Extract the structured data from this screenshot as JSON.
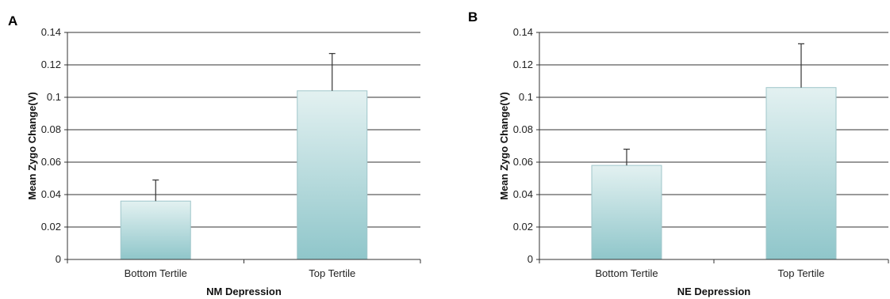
{
  "chart_data": [
    {
      "panel": "A",
      "type": "bar",
      "categories": [
        "Bottom Tertile",
        "Top Tertile"
      ],
      "values": [
        0.036,
        0.104
      ],
      "error_upper": [
        0.049,
        0.127
      ],
      "xlabel": "NM Depression",
      "ylabel": "Mean Zygo Change(V)",
      "ylim": [
        0,
        0.14
      ],
      "yticks": [
        "0",
        "0.02",
        "0.04",
        "0.06",
        "0.08",
        "0.1",
        "0.12",
        "0.14"
      ],
      "grid": true
    },
    {
      "panel": "B",
      "type": "bar",
      "categories": [
        "Bottom Tertile",
        "Top Tertile"
      ],
      "values": [
        0.058,
        0.106
      ],
      "error_upper": [
        0.068,
        0.133
      ],
      "xlabel": "NE Depression",
      "ylabel": "Mean Zygo Change(V)",
      "ylim": [
        0,
        0.14
      ],
      "yticks": [
        "0",
        "0.02",
        "0.04",
        "0.06",
        "0.08",
        "0.1",
        "0.12",
        "0.14"
      ],
      "grid": true
    }
  ],
  "colors": {
    "bar_top": "#e3f1f1",
    "bar_bottom": "#8fc6ca"
  }
}
